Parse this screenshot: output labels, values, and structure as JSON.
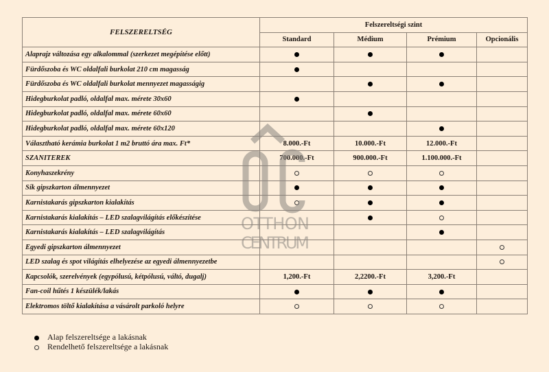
{
  "header": {
    "main_label": "FELSZERELTSÉG",
    "group_label": "Felszereltségi szint",
    "columns": [
      "Standard",
      "Médium",
      "Prémium",
      "Opcionális"
    ]
  },
  "rows": [
    {
      "label": "Alaprajz változása egy alkalommal (szerkezet megépítése előtt)",
      "cells": [
        "filled",
        "filled",
        "filled",
        ""
      ]
    },
    {
      "label": "Fürdőszoba és WC oldalfali burkolat 210 cm magasság",
      "cells": [
        "filled",
        "",
        "",
        ""
      ]
    },
    {
      "label": "Fürdőszoba és WC oldalfali burkolat mennyezet magasságig",
      "cells": [
        "",
        "filled",
        "filled",
        ""
      ]
    },
    {
      "label": "Hidegburkolat  padló, oldalfal max. mérete 30x60",
      "cells": [
        "filled",
        "",
        "",
        ""
      ]
    },
    {
      "label": "Hidegburkolat  padló, oldalfal  max. mérete 60x60",
      "cells": [
        "",
        "filled",
        "",
        ""
      ]
    },
    {
      "label": "Hidegburkolat  padló, oldalfal max. mérete 60x120",
      "cells": [
        "",
        "",
        "filled",
        ""
      ]
    },
    {
      "label": "Választható kerámia burkolat 1 m2 bruttó ára max. Ft*",
      "cells": [
        "8.000.-Ft",
        "10.000.-Ft",
        "12.000.-Ft",
        ""
      ]
    },
    {
      "label": "SZANITEREK",
      "cells": [
        "700.000.-Ft",
        "900.000.-Ft",
        "1.100.000.-Ft",
        ""
      ]
    },
    {
      "label": "Konyhaszekrény",
      "cells": [
        "open",
        "open",
        "open",
        ""
      ]
    },
    {
      "label": "Sík gipszkarton álmennyezet",
      "cells": [
        "filled",
        "filled",
        "filled",
        ""
      ]
    },
    {
      "label": "Karnistakarás gipszkarton kialakítás",
      "cells": [
        "open",
        "filled",
        "filled",
        ""
      ]
    },
    {
      "label": "Karnistakarás kialakítás – LED szalagvilágítás előkészítése",
      "cells": [
        "",
        "filled",
        "open",
        ""
      ]
    },
    {
      "label": "Karnistakarás kialakítás – LED szalagvilágítás",
      "cells": [
        "",
        "",
        "filled",
        ""
      ]
    },
    {
      "label": "Egyedi gipszkarton álmennyezet",
      "cells": [
        "",
        "",
        "",
        "open"
      ]
    },
    {
      "label": "LED szalag és spot világítás elhelyezése az egyedi álmennyezetbe",
      "cells": [
        "",
        "",
        "",
        "open"
      ]
    },
    {
      "label": "Kapcsolók, szerelvények (egypólusú, kétpólusú, váltó, dugalj)",
      "cells": [
        "1,200.-Ft",
        "2,2200.-Ft",
        "3,200.-Ft",
        ""
      ]
    },
    {
      "label": "Fan-coil hűtés 1 készülék/lakás",
      "cells": [
        "filled",
        "filled",
        "filled",
        ""
      ]
    },
    {
      "label": "Elektromos töltő kialakítása a vásárolt parkoló helyre",
      "cells": [
        "open",
        "open",
        "open",
        ""
      ]
    }
  ],
  "legend": {
    "filled_label": "Alap felszereltsége a lakásnak",
    "open_label": "Rendelhető felszereltsége a lakásnak"
  },
  "watermark": {
    "line1": "OTTHON",
    "line2": "CENTRUM",
    "color": "#8a8580"
  }
}
